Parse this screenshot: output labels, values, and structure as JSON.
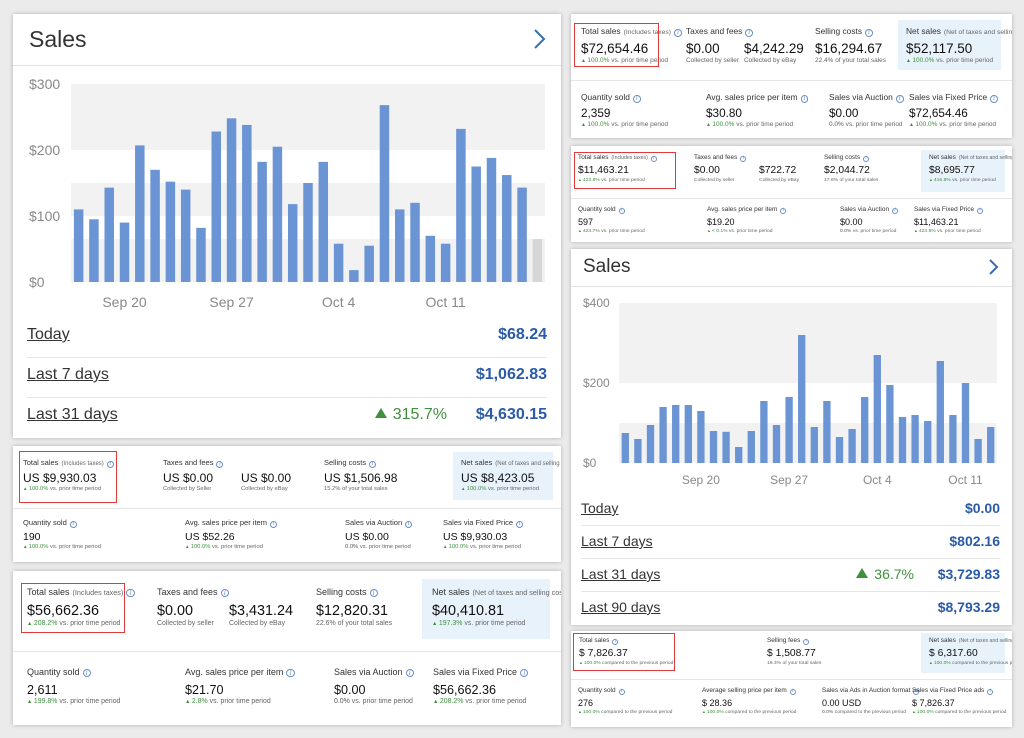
{
  "colors": {
    "bar": "#6a94d4",
    "band": "#f2f2f2",
    "value": "#2a5aa8",
    "green": "#3f8f3f",
    "net_bg": "#e8f2fb",
    "highlight": "#e23a3a"
  },
  "sales_widget_1": {
    "title": "Sales",
    "chevron_icon": "chevron-right-icon",
    "chart_data": {
      "type": "bar",
      "y_ticks": [
        "$300",
        "$200",
        "$100",
        "$0"
      ],
      "ylim": [
        0,
        300
      ],
      "x_ticks": [
        "Sep 20",
        "Sep 27",
        "Oct 4",
        "Oct 11"
      ],
      "x_tick_index": [
        3,
        10,
        17,
        24
      ],
      "values": [
        110,
        95,
        143,
        90,
        207,
        170,
        152,
        140,
        82,
        228,
        248,
        238,
        182,
        205,
        118,
        150,
        182,
        58,
        18,
        55,
        268,
        110,
        120,
        70,
        58,
        232,
        175,
        188,
        162,
        143
      ],
      "partial_last_value": 65,
      "series": [
        {
          "values": [
            110,
            95,
            143,
            90,
            207,
            170,
            152,
            140,
            82,
            228,
            248,
            238,
            182,
            205,
            118,
            150,
            182,
            58,
            18,
            55,
            268,
            110,
            120,
            70,
            58,
            232,
            175,
            188,
            162,
            143
          ]
        }
      ]
    },
    "rows": [
      {
        "label": "Today",
        "value": "$68.24",
        "change": ""
      },
      {
        "label": "Last 7 days",
        "value": "$1,062.83",
        "change": ""
      },
      {
        "label": "Last 31 days",
        "value": "$4,630.15",
        "change": "315.7%"
      }
    ]
  },
  "summary_1": {
    "top": [
      {
        "title": "Total sales",
        "sub": "(Includes taxes)",
        "value": "US $9,930.03",
        "note_pct": "100.0%",
        "note_text": "vs. prior time period"
      },
      {
        "title": "Taxes and fees",
        "sub": "",
        "value": "US $0.00",
        "note_pct": "",
        "note_text": "Collected by Seller"
      },
      {
        "title": "",
        "sub": "",
        "value": "US $0.00",
        "note_pct": "",
        "note_text": "Collected by eBay"
      },
      {
        "title": "Selling costs",
        "sub": "",
        "value": "US $1,506.98",
        "note_pct": "",
        "note_text": "15.2% of your total sales"
      },
      {
        "title": "Net sales",
        "sub": "(Net of taxes and selling costs)",
        "value": "US $8,423.05",
        "note_pct": "100.0%",
        "note_text": "vs. prior time period"
      }
    ],
    "bottom": [
      {
        "title": "Quantity sold",
        "value": "190",
        "note_pct": "100.0%",
        "note_text": "vs. prior time period"
      },
      {
        "title": "Avg. sales price per item",
        "value": "US $52.26",
        "note_pct": "100.0%",
        "note_text": "vs. prior time period"
      },
      {
        "title": "Sales via Auction",
        "value": "US $0.00",
        "note_pct": "0.0%",
        "note_text": "vs. prior time period"
      },
      {
        "title": "Sales via Fixed Price",
        "value": "US $9,930.03",
        "note_pct": "100.0%",
        "note_text": "vs. prior time period"
      }
    ]
  },
  "summary_2": {
    "top": [
      {
        "title": "Total sales",
        "sub": "(Includes taxes)",
        "value": "$56,662.36",
        "note_pct": "208.2%",
        "note_text": "vs. prior time period"
      },
      {
        "title": "Taxes and fees",
        "sub": "",
        "value": "$0.00",
        "note_pct": "",
        "note_text": "Collected by seller"
      },
      {
        "title": "",
        "sub": "",
        "value": "$3,431.24",
        "note_pct": "",
        "note_text": "Collected by eBay"
      },
      {
        "title": "Selling costs",
        "sub": "",
        "value": "$12,820.31",
        "note_pct": "",
        "note_text": "22.6% of your total sales"
      },
      {
        "title": "Net sales",
        "sub": "(Net of taxes and selling costs)",
        "value": "$40,410.81",
        "note_pct": "197.3%",
        "note_text": "vs. prior time period"
      }
    ],
    "bottom": [
      {
        "title": "Quantity sold",
        "value": "2,611",
        "note_pct": "199.8%",
        "note_text": "vs. prior time period"
      },
      {
        "title": "Avg. sales price per item",
        "value": "$21.70",
        "note_pct": "2.8%",
        "note_text": "vs. prior time period"
      },
      {
        "title": "Sales via Auction",
        "value": "$0.00",
        "note_pct": "0.0%",
        "note_text": "vs. prior time period"
      },
      {
        "title": "Sales via Fixed Price",
        "value": "$56,662.36",
        "note_pct": "208.2%",
        "note_text": "vs. prior time period"
      }
    ]
  },
  "summary_3": {
    "top": [
      {
        "title": "Total sales",
        "sub": "(Includes taxes)",
        "value": "$72,654.46",
        "note_pct": "100.0%",
        "note_text": "vs. prior time period"
      },
      {
        "title": "Taxes and fees",
        "sub": "",
        "value": "$0.00",
        "note_pct": "",
        "note_text": "Collected by seller"
      },
      {
        "title": "",
        "sub": "",
        "value": "$4,242.29",
        "note_pct": "",
        "note_text": "Collected by eBay"
      },
      {
        "title": "Selling costs",
        "sub": "",
        "value": "$16,294.67",
        "note_pct": "",
        "note_text": "22.4% of your total sales"
      },
      {
        "title": "Net sales",
        "sub": "(Net of taxes and selling costs)",
        "value": "$52,117.50",
        "note_pct": "100.0%",
        "note_text": "vs. prior time period"
      }
    ],
    "bottom": [
      {
        "title": "Quantity sold",
        "value": "2,359",
        "note_pct": "100.0%",
        "note_text": "vs. prior time period"
      },
      {
        "title": "Avg. sales price per item",
        "value": "$30.80",
        "note_pct": "100.0%",
        "note_text": "vs. prior time period"
      },
      {
        "title": "Sales via Auction",
        "value": "$0.00",
        "note_pct": "0.0%",
        "note_text": "vs. prior time period"
      },
      {
        "title": "Sales via Fixed Price",
        "value": "$72,654.46",
        "note_pct": "100.0%",
        "note_text": "vs. prior time period"
      }
    ]
  },
  "summary_4": {
    "top": [
      {
        "title": "Total sales",
        "sub": "(Includes taxes)",
        "value": "$11,463.21",
        "note_pct": "423.8%",
        "note_text": "vs. prior time period"
      },
      {
        "title": "Taxes and fees",
        "sub": "",
        "value": "$0.00",
        "note_pct": "",
        "note_text": "Collected by seller"
      },
      {
        "title": "",
        "sub": "",
        "value": "$722.72",
        "note_pct": "",
        "note_text": "Collected by eBay"
      },
      {
        "title": "Selling costs",
        "sub": "",
        "value": "$2,044.72",
        "note_pct": "",
        "note_text": "17.8% of your total sales"
      },
      {
        "title": "Net sales",
        "sub": "(Net of taxes and selling costs)",
        "value": "$8,695.77",
        "note_pct": "416.8%",
        "note_text": "vs. prior time period"
      }
    ],
    "bottom": [
      {
        "title": "Quantity sold",
        "value": "597",
        "note_pct": "423.7%",
        "note_text": "vs. prior time period"
      },
      {
        "title": "Avg. sales price per item",
        "value": "$19.20",
        "note_pct": "< 0.1%",
        "note_text": "vs. prior time period"
      },
      {
        "title": "Sales via Auction",
        "value": "$0.00",
        "note_pct": "0.0%",
        "note_text": "vs. prior time period"
      },
      {
        "title": "Sales via Fixed Price",
        "value": "$11,463.21",
        "note_pct": "423.8%",
        "note_text": "vs. prior time period"
      }
    ]
  },
  "sales_widget_2": {
    "title": "Sales",
    "chevron_icon": "chevron-right-icon",
    "chart_data": {
      "type": "bar",
      "y_ticks": [
        "$400",
        "$200",
        "$0"
      ],
      "ylim": [
        0,
        400
      ],
      "x_ticks": [
        "Sep 20",
        "Sep 27",
        "Oct 4",
        "Oct 11"
      ],
      "x_tick_index": [
        6,
        13,
        20,
        27
      ],
      "values": [
        75,
        60,
        95,
        140,
        145,
        145,
        130,
        80,
        78,
        40,
        80,
        155,
        95,
        165,
        320,
        90,
        155,
        65,
        85,
        165,
        270,
        195,
        115,
        120,
        105,
        255,
        120,
        200,
        60,
        90
      ],
      "series": [
        {
          "values": [
            75,
            60,
            95,
            140,
            145,
            145,
            130,
            80,
            78,
            40,
            80,
            155,
            95,
            165,
            320,
            90,
            155,
            65,
            85,
            165,
            270,
            195,
            115,
            120,
            105,
            255,
            120,
            200,
            60,
            90
          ]
        }
      ]
    },
    "rows": [
      {
        "label": "Today",
        "value": "$0.00",
        "change": ""
      },
      {
        "label": "Last 7 days",
        "value": "$802.16",
        "change": ""
      },
      {
        "label": "Last 31 days",
        "value": "$3,729.83",
        "change": "36.7%"
      },
      {
        "label": "Last 90 days",
        "value": "$8,793.29",
        "change": ""
      }
    ]
  },
  "summary_5": {
    "top": [
      {
        "title": "Total sales",
        "sub": "",
        "value": "$ 7,826.37",
        "note_pct": "100.0%",
        "note_text": "compared to the previous period"
      },
      {
        "title": "Selling fees",
        "sub": "",
        "value": "$ 1,508.77",
        "note_pct": "",
        "note_text": "19.3% of your total sales"
      },
      {
        "title": "Net sales",
        "sub": "(Net of taxes and selling costs)",
        "value": "$ 6,317.60",
        "note_pct": "100.0%",
        "note_text": "compared to the previous period"
      }
    ],
    "bottom": [
      {
        "title": "Quantity sold",
        "value": "276",
        "note_pct": "100.0%",
        "note_text": "compared to the previous period"
      },
      {
        "title": "Average selling price per item",
        "value": "$ 28.36",
        "note_pct": "100.0%",
        "note_text": "compared to the previous period"
      },
      {
        "title": "Sales via Ads in Auction format",
        "value": "0.00 USD",
        "note_pct": "0.0%",
        "note_text": "compared to the previous period"
      },
      {
        "title": "Sales via Fixed Price ads",
        "value": "$ 7,826.37",
        "note_pct": "100.0%",
        "note_text": "compared to the previous period"
      }
    ]
  }
}
